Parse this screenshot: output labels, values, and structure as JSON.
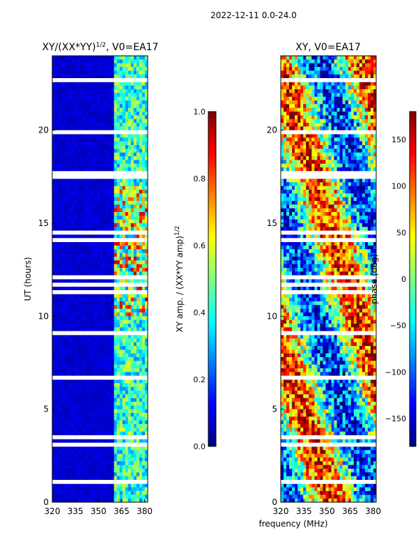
{
  "suptitle": "2022-12-11 0.0-24.0",
  "colors": {
    "jet": [
      "#00007f",
      "#0000ff",
      "#007fff",
      "#00ffff",
      "#7fff7f",
      "#ffff00",
      "#ff7f00",
      "#ff0000",
      "#7f0000"
    ]
  },
  "chart_data": [
    {
      "type": "heatmap",
      "title": "XY/(XX*YY)",
      "title_superscript": "1/2",
      "title_suffix": ", V0=EA17",
      "xlabel": "",
      "ylabel": "UT (hours)",
      "xlim": [
        320,
        382
      ],
      "ylim": [
        0,
        24
      ],
      "xticks": [
        "320",
        "335",
        "350",
        "365",
        "380"
      ],
      "yticks": [
        "0",
        "5",
        "10",
        "15",
        "20"
      ],
      "colorbar": {
        "label": "XY amp. / (XX*YY amp)",
        "label_superscript": "1/2",
        "range": [
          0.0,
          1.0
        ],
        "ticks": [
          "0.0",
          "0.2",
          "0.4",
          "0.6",
          "0.8",
          "1.0"
        ],
        "colormap": "jet"
      }
    },
    {
      "type": "heatmap",
      "title": "XY, V0=EA17",
      "xlabel": "frequency (MHz)",
      "ylabel": "",
      "xlim": [
        320,
        382
      ],
      "ylim": [
        0,
        24
      ],
      "xticks": [
        "320",
        "335",
        "350",
        "365",
        "380"
      ],
      "yticks": [
        "0",
        "5",
        "10",
        "15",
        "20"
      ],
      "colorbar": {
        "label": "phase (deg)",
        "range": [
          -180,
          180
        ],
        "ticks": [
          "−150",
          "−100",
          "−50",
          "0",
          "50",
          "100",
          "150"
        ],
        "colormap": "jet"
      }
    }
  ]
}
